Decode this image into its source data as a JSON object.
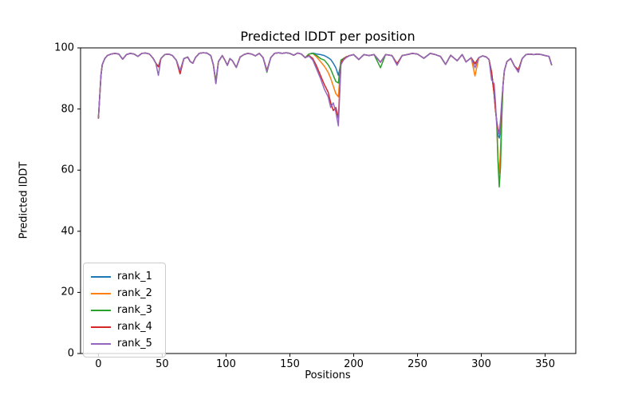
{
  "chart_data": {
    "type": "line",
    "title": "Predicted lDDT per position",
    "xlabel": "Positions",
    "ylabel": "Predicted lDDT",
    "xlim": [
      -14,
      374
    ],
    "ylim": [
      0,
      100
    ],
    "xticks": [
      0,
      50,
      100,
      150,
      200,
      250,
      300,
      350
    ],
    "yticks": [
      0,
      20,
      40,
      60,
      80,
      100
    ],
    "grid": false,
    "legend_position": "lower left",
    "axis_color": "#000000",
    "background_color": "#ffffff",
    "legend_border_color": "#cccccc",
    "line_width": 1.5,
    "x": [
      0,
      1,
      2,
      3,
      5,
      7,
      10,
      13,
      16,
      19,
      22,
      25,
      28,
      31,
      34,
      37,
      40,
      43,
      45,
      47,
      49,
      52,
      55,
      58,
      61,
      64,
      67,
      70,
      72,
      74,
      76,
      79,
      82,
      85,
      88,
      90,
      92,
      94,
      97,
      99,
      101,
      103,
      105,
      108,
      111,
      114,
      117,
      120,
      123,
      126,
      129,
      132,
      135,
      138,
      141,
      144,
      147,
      150,
      153,
      156,
      159,
      162,
      165,
      168,
      171,
      174,
      177,
      180,
      182,
      184,
      186,
      188,
      190,
      192,
      194,
      197,
      200,
      204,
      208,
      212,
      216,
      221,
      225,
      230,
      234,
      238,
      242,
      246,
      250,
      255,
      260,
      264,
      268,
      272,
      276,
      281,
      285,
      288,
      292,
      295,
      298,
      301,
      304,
      306,
      308,
      310,
      311,
      312,
      313,
      314,
      315,
      316,
      317,
      318,
      320,
      323,
      326,
      329,
      332,
      335,
      338,
      341,
      344,
      347,
      350,
      353,
      355
    ],
    "series": [
      {
        "name": "rank_1",
        "color": "#1f77b4",
        "values": [
          77,
          84,
          91,
          94.5,
          96.5,
          97.5,
          98,
          98.2,
          98,
          96.3,
          97.8,
          98.2,
          98,
          97.2,
          98.2,
          98.3,
          98,
          96.5,
          95,
          93.8,
          96.5,
          97.8,
          98,
          97.5,
          96,
          92.5,
          96.5,
          97,
          95.5,
          95,
          96.8,
          98.2,
          98.4,
          98.3,
          97.5,
          94.5,
          89,
          95.5,
          97.5,
          96,
          94.3,
          96.5,
          95.8,
          93.6,
          97,
          97.8,
          98.2,
          98,
          97.4,
          98.2,
          96.8,
          92.6,
          96.8,
          98.2,
          98.4,
          98.2,
          98.4,
          98.2,
          97.6,
          98.3,
          98,
          96.8,
          98,
          98.3,
          98,
          97.8,
          97.5,
          96.8,
          96.2,
          95,
          93.5,
          91,
          95,
          96.5,
          97,
          97.5,
          97.8,
          96.2,
          97.8,
          97.5,
          97.8,
          95.3,
          97.8,
          97.5,
          94.8,
          97.5,
          97.8,
          98.2,
          98,
          96.6,
          98.2,
          97.8,
          97.2,
          94.6,
          97.6,
          95.8,
          97.8,
          95.4,
          96.8,
          94.8,
          96.8,
          97.4,
          97,
          96.2,
          92,
          85,
          80,
          76,
          71.5,
          70.5,
          73,
          80,
          88,
          92.5,
          95.5,
          96.5,
          94,
          92.8,
          96.5,
          97.8,
          98,
          97.8,
          98,
          97.8,
          97.5,
          97.2,
          94.5
        ]
      },
      {
        "name": "rank_2",
        "color": "#ff7f0e",
        "values": [
          77,
          84,
          91,
          94.5,
          96.5,
          97.5,
          98,
          98.2,
          98,
          96.3,
          97.8,
          98.2,
          98,
          97.2,
          98.2,
          98.3,
          98,
          96.5,
          95,
          93.8,
          96.5,
          97.8,
          98,
          97.5,
          96,
          92.5,
          96.5,
          97,
          95.5,
          95,
          96.8,
          98.2,
          98.4,
          98.3,
          97.5,
          94.5,
          89,
          95.5,
          97.5,
          96,
          94.3,
          96.5,
          95.8,
          93.6,
          97,
          97.8,
          98.2,
          98,
          97.4,
          98.2,
          96.8,
          92.6,
          96.8,
          98.2,
          98.4,
          98.2,
          98.4,
          98.2,
          97.6,
          98.3,
          98,
          96.8,
          98,
          98.2,
          97,
          95.5,
          94,
          92,
          90,
          87.5,
          85,
          84,
          95.5,
          96.5,
          97,
          97.5,
          97.8,
          96.2,
          97.8,
          97.5,
          97.8,
          95.3,
          97.8,
          97.5,
          94.8,
          97.5,
          97.8,
          98.2,
          98,
          96.6,
          98.2,
          97.8,
          97.2,
          94.6,
          97.6,
          95.8,
          97.8,
          95.4,
          96.8,
          90.8,
          96.8,
          97.4,
          97,
          96.2,
          92,
          85,
          80,
          76,
          64,
          59,
          67,
          79,
          88,
          92.5,
          95.5,
          96.5,
          94,
          92.8,
          96.5,
          97.8,
          98,
          97.8,
          98,
          97.8,
          97.5,
          97.2,
          94.5
        ]
      },
      {
        "name": "rank_3",
        "color": "#2ca02c",
        "values": [
          77,
          84,
          91,
          94.5,
          96.5,
          97.5,
          98,
          98.2,
          98,
          96.3,
          97.8,
          98.2,
          98,
          97.2,
          98.2,
          98.3,
          98,
          96.5,
          95,
          93.8,
          96.5,
          97.8,
          98,
          97.5,
          96,
          92.5,
          96.5,
          97,
          95.5,
          95,
          96.8,
          98.2,
          98.4,
          98.3,
          97.5,
          94.5,
          89,
          95.5,
          97.5,
          96,
          94.3,
          96.5,
          95.8,
          93.6,
          97,
          97.8,
          98.2,
          98,
          97.4,
          98.2,
          96.8,
          92,
          96.8,
          98.2,
          98.4,
          98.2,
          98.4,
          98.2,
          97.6,
          98.3,
          98,
          96.8,
          98,
          98.2,
          97.5,
          96.5,
          96,
          94.5,
          93,
          91,
          89,
          88.5,
          96,
          96.5,
          97,
          97.5,
          97.8,
          96.2,
          97.8,
          97.5,
          97.8,
          93.5,
          97.8,
          97.5,
          94.8,
          97.5,
          97.8,
          98.2,
          98,
          96.6,
          98.2,
          97.8,
          97.2,
          94.6,
          97.6,
          95.8,
          97.8,
          95.4,
          96.8,
          94.8,
          96.8,
          97.4,
          97,
          96.2,
          92,
          85,
          80,
          76,
          63,
          54.5,
          61,
          77,
          88,
          92.5,
          95.5,
          96.5,
          94,
          92.8,
          96.5,
          97.8,
          98,
          97.8,
          98,
          97.8,
          97.5,
          97.2,
          94.5
        ]
      },
      {
        "name": "rank_4",
        "color": "#d62728",
        "values": [
          77,
          84,
          91,
          94.5,
          96.5,
          97.5,
          98,
          98.2,
          98,
          96.3,
          97.8,
          98.2,
          98,
          97.2,
          98.2,
          98.3,
          98,
          96.5,
          95,
          93.8,
          96.5,
          97.8,
          98,
          97.5,
          96,
          91.5,
          96.5,
          97,
          95.5,
          95,
          96.8,
          98.2,
          98.4,
          98.3,
          97.5,
          94.5,
          88.3,
          95.5,
          97.5,
          96,
          94.3,
          96.5,
          95.8,
          93.6,
          97,
          97.8,
          98.2,
          98,
          97.4,
          98.2,
          96.8,
          92.6,
          96.8,
          98.2,
          98.4,
          98.2,
          98.4,
          98.2,
          97.6,
          98.3,
          98,
          96.8,
          97.5,
          96.5,
          94,
          91,
          88,
          85.5,
          82,
          79.5,
          80.5,
          77,
          95,
          96.3,
          97,
          97.5,
          97.8,
          96.2,
          97.8,
          97.5,
          97.8,
          95.3,
          97.8,
          97.5,
          94.8,
          97.5,
          97.8,
          98.2,
          98,
          96.6,
          98.2,
          97.8,
          97.2,
          94.6,
          97.6,
          95.8,
          97.8,
          95.4,
          96.8,
          94.8,
          96.8,
          97.4,
          97,
          96.2,
          92,
          85,
          80,
          76,
          73.5,
          72,
          75,
          82,
          88,
          92.5,
          95.5,
          96.5,
          94,
          92.8,
          96.5,
          97.8,
          98,
          97.8,
          98,
          97.8,
          97.5,
          97.2,
          94.5
        ]
      },
      {
        "name": "rank_5",
        "color": "#9467bd",
        "values": [
          77,
          84,
          91,
          94.5,
          96.5,
          97.5,
          98,
          98.2,
          98,
          96.3,
          97.8,
          98.2,
          98,
          97.2,
          98.2,
          98.3,
          98,
          96.5,
          95,
          91,
          96.5,
          97.8,
          98,
          97.5,
          96,
          92.5,
          96.5,
          97,
          95.5,
          95,
          96.8,
          98.2,
          98.4,
          98.3,
          97.5,
          94.5,
          88.3,
          95.5,
          97.5,
          96,
          94.3,
          96.5,
          95.8,
          93.6,
          97,
          97.8,
          98.2,
          98,
          97.4,
          98.2,
          96.8,
          92.3,
          96.8,
          98.2,
          98.4,
          98.2,
          98.4,
          98.2,
          97.6,
          98.3,
          98,
          96.8,
          97.3,
          96,
          93,
          90,
          86.5,
          84,
          80.5,
          82,
          79,
          74.5,
          94.5,
          96,
          96.8,
          97.5,
          97.8,
          96.2,
          97.8,
          97.5,
          97.8,
          95.3,
          97.8,
          97.5,
          94.3,
          97.5,
          97.8,
          98.2,
          98,
          96.6,
          98.2,
          97.8,
          97.2,
          94.6,
          97.6,
          95.8,
          97.8,
          95.4,
          96.8,
          93.5,
          96.8,
          97.4,
          97,
          96.2,
          89.5,
          88.3,
          82.5,
          74.8,
          72.5,
          71.8,
          76.5,
          83,
          88,
          92.5,
          95.5,
          96.5,
          94,
          92,
          96.5,
          97.8,
          98,
          97.8,
          98,
          97.8,
          97.5,
          97.2,
          94.5
        ]
      }
    ]
  }
}
